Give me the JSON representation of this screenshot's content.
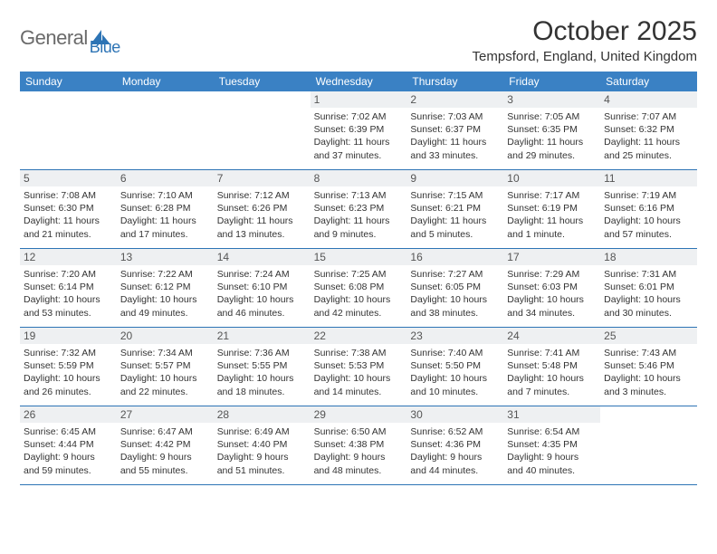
{
  "brand": {
    "name1": "General",
    "name2": "Blue"
  },
  "title": "October 2025",
  "location": "Tempsford, England, United Kingdom",
  "colors": {
    "header_bg": "#3a81c4",
    "accent": "#2d74b5",
    "daynum_bg": "#eef0f2",
    "text": "#333333"
  },
  "dow": [
    "Sunday",
    "Monday",
    "Tuesday",
    "Wednesday",
    "Thursday",
    "Friday",
    "Saturday"
  ],
  "weeks": [
    [
      null,
      null,
      null,
      {
        "n": "1",
        "r": "7:02 AM",
        "s": "6:39 PM",
        "d": "11 hours and 37 minutes."
      },
      {
        "n": "2",
        "r": "7:03 AM",
        "s": "6:37 PM",
        "d": "11 hours and 33 minutes."
      },
      {
        "n": "3",
        "r": "7:05 AM",
        "s": "6:35 PM",
        "d": "11 hours and 29 minutes."
      },
      {
        "n": "4",
        "r": "7:07 AM",
        "s": "6:32 PM",
        "d": "11 hours and 25 minutes."
      }
    ],
    [
      {
        "n": "5",
        "r": "7:08 AM",
        "s": "6:30 PM",
        "d": "11 hours and 21 minutes."
      },
      {
        "n": "6",
        "r": "7:10 AM",
        "s": "6:28 PM",
        "d": "11 hours and 17 minutes."
      },
      {
        "n": "7",
        "r": "7:12 AM",
        "s": "6:26 PM",
        "d": "11 hours and 13 minutes."
      },
      {
        "n": "8",
        "r": "7:13 AM",
        "s": "6:23 PM",
        "d": "11 hours and 9 minutes."
      },
      {
        "n": "9",
        "r": "7:15 AM",
        "s": "6:21 PM",
        "d": "11 hours and 5 minutes."
      },
      {
        "n": "10",
        "r": "7:17 AM",
        "s": "6:19 PM",
        "d": "11 hours and 1 minute."
      },
      {
        "n": "11",
        "r": "7:19 AM",
        "s": "6:16 PM",
        "d": "10 hours and 57 minutes."
      }
    ],
    [
      {
        "n": "12",
        "r": "7:20 AM",
        "s": "6:14 PM",
        "d": "10 hours and 53 minutes."
      },
      {
        "n": "13",
        "r": "7:22 AM",
        "s": "6:12 PM",
        "d": "10 hours and 49 minutes."
      },
      {
        "n": "14",
        "r": "7:24 AM",
        "s": "6:10 PM",
        "d": "10 hours and 46 minutes."
      },
      {
        "n": "15",
        "r": "7:25 AM",
        "s": "6:08 PM",
        "d": "10 hours and 42 minutes."
      },
      {
        "n": "16",
        "r": "7:27 AM",
        "s": "6:05 PM",
        "d": "10 hours and 38 minutes."
      },
      {
        "n": "17",
        "r": "7:29 AM",
        "s": "6:03 PM",
        "d": "10 hours and 34 minutes."
      },
      {
        "n": "18",
        "r": "7:31 AM",
        "s": "6:01 PM",
        "d": "10 hours and 30 minutes."
      }
    ],
    [
      {
        "n": "19",
        "r": "7:32 AM",
        "s": "5:59 PM",
        "d": "10 hours and 26 minutes."
      },
      {
        "n": "20",
        "r": "7:34 AM",
        "s": "5:57 PM",
        "d": "10 hours and 22 minutes."
      },
      {
        "n": "21",
        "r": "7:36 AM",
        "s": "5:55 PM",
        "d": "10 hours and 18 minutes."
      },
      {
        "n": "22",
        "r": "7:38 AM",
        "s": "5:53 PM",
        "d": "10 hours and 14 minutes."
      },
      {
        "n": "23",
        "r": "7:40 AM",
        "s": "5:50 PM",
        "d": "10 hours and 10 minutes."
      },
      {
        "n": "24",
        "r": "7:41 AM",
        "s": "5:48 PM",
        "d": "10 hours and 7 minutes."
      },
      {
        "n": "25",
        "r": "7:43 AM",
        "s": "5:46 PM",
        "d": "10 hours and 3 minutes."
      }
    ],
    [
      {
        "n": "26",
        "r": "6:45 AM",
        "s": "4:44 PM",
        "d": "9 hours and 59 minutes."
      },
      {
        "n": "27",
        "r": "6:47 AM",
        "s": "4:42 PM",
        "d": "9 hours and 55 minutes."
      },
      {
        "n": "28",
        "r": "6:49 AM",
        "s": "4:40 PM",
        "d": "9 hours and 51 minutes."
      },
      {
        "n": "29",
        "r": "6:50 AM",
        "s": "4:38 PM",
        "d": "9 hours and 48 minutes."
      },
      {
        "n": "30",
        "r": "6:52 AM",
        "s": "4:36 PM",
        "d": "9 hours and 44 minutes."
      },
      {
        "n": "31",
        "r": "6:54 AM",
        "s": "4:35 PM",
        "d": "9 hours and 40 minutes."
      },
      null
    ]
  ],
  "labels": {
    "sunrise": "Sunrise:",
    "sunset": "Sunset:",
    "daylight": "Daylight:"
  }
}
